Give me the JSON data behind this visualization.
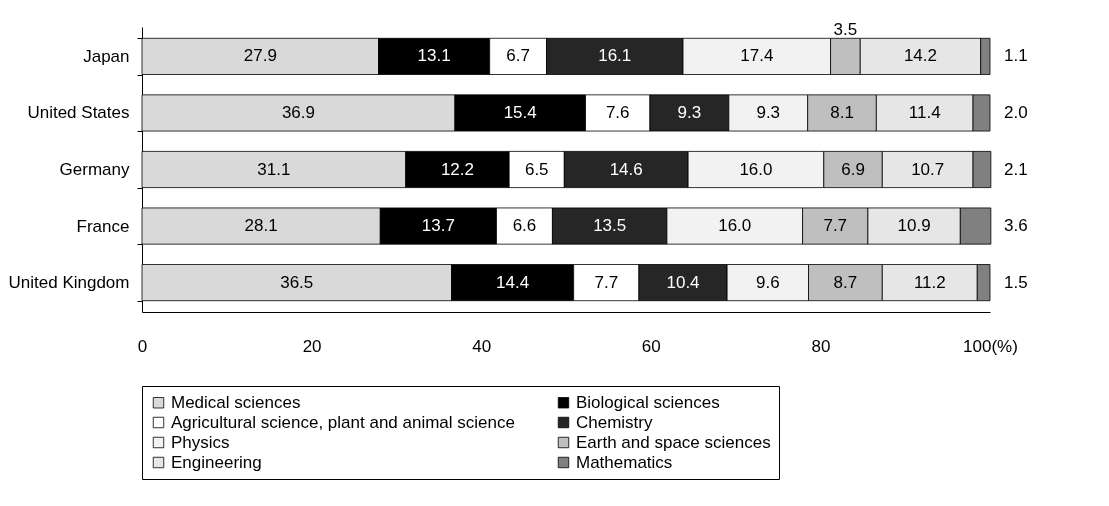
{
  "chart_data": {
    "type": "bar",
    "orientation": "horizontal",
    "stacked": true,
    "legend": "bottom",
    "grid": false,
    "categories": [
      "Japan",
      "United States",
      "Germany",
      "France",
      "United Kingdom"
    ],
    "xlim": [
      0,
      100
    ],
    "xticks": [
      0,
      20,
      40,
      60,
      80,
      {
        "value": 100,
        "label": "100(%)"
      }
    ],
    "series": [
      {
        "name": "Medical sciences",
        "color": "#d9d9d9",
        "values": [
          27.9,
          36.9,
          31.1,
          28.1,
          36.5
        ],
        "value_labels": [
          "27.9",
          "36.9",
          "31.1",
          "28.1",
          "36.5"
        ]
      },
      {
        "name": "Biological sciences",
        "color": "#000000",
        "values": [
          13.1,
          15.4,
          12.2,
          13.7,
          14.4
        ],
        "value_labels": [
          "13.1",
          "15.4",
          "12.2",
          "13.7",
          "14.4"
        ]
      },
      {
        "name": "Agricultural science, plant and animal science",
        "color": "#ffffff",
        "values": [
          6.7,
          7.6,
          6.5,
          6.6,
          7.7
        ],
        "value_labels": [
          "6.7",
          "7.6",
          "6.5",
          "6.6",
          "7.7"
        ]
      },
      {
        "name": "Chemistry",
        "color": "#262626",
        "values": [
          16.1,
          9.3,
          14.6,
          13.5,
          10.4
        ],
        "value_labels": [
          "16.1",
          "9.3",
          "14.6",
          "13.5",
          "10.4"
        ]
      },
      {
        "name": "Physics",
        "color": "#f2f2f2",
        "values": [
          17.4,
          9.3,
          16.0,
          16.0,
          9.6
        ],
        "value_labels": [
          "17.4",
          "9.3",
          "16.0",
          "16.0",
          "9.6"
        ]
      },
      {
        "name": "Earth and space sciences",
        "color": "#bfbfbf",
        "values": [
          3.5,
          8.1,
          6.9,
          7.7,
          8.7
        ],
        "value_labels": [
          "3.5",
          "8.1",
          "6.9",
          "7.7",
          "8.7"
        ]
      },
      {
        "name": "Engineering",
        "color": "#e6e6e6",
        "values": [
          14.2,
          11.4,
          10.7,
          10.9,
          11.2
        ],
        "value_labels": [
          "14.2",
          "11.4",
          "10.7",
          "10.9",
          "11.2"
        ]
      },
      {
        "name": "Mathematics",
        "color": "#808080",
        "values": [
          1.1,
          2.0,
          2.1,
          3.6,
          1.5
        ],
        "value_labels": [
          "1.1",
          "2.0",
          "2.1",
          "3.6",
          "1.5"
        ]
      }
    ]
  }
}
